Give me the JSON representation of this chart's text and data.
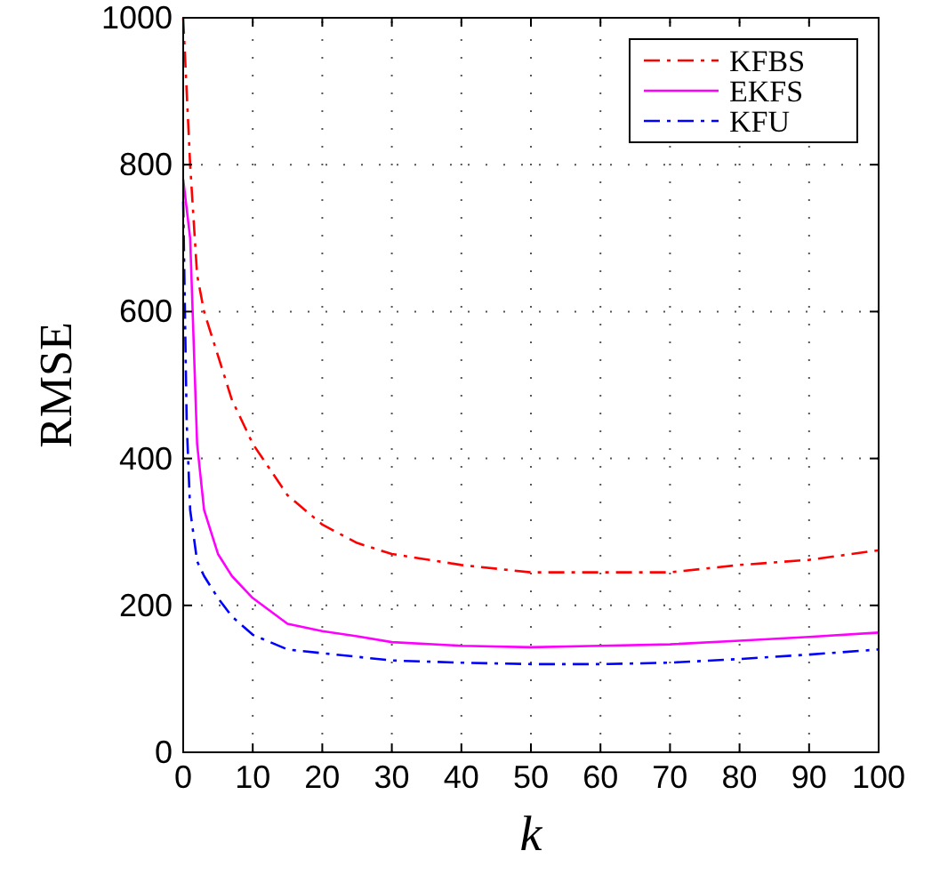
{
  "chart_data": {
    "type": "line",
    "xlabel": "k",
    "ylabel": "RMSE",
    "xlim": [
      0,
      100
    ],
    "ylim": [
      0,
      1000
    ],
    "xticks": [
      0,
      10,
      20,
      30,
      40,
      50,
      60,
      70,
      80,
      90,
      100
    ],
    "yticks": [
      0,
      200,
      400,
      600,
      800,
      1000
    ],
    "grid": true,
    "legend": "top right",
    "series": [
      {
        "name": "KFBS",
        "color": "#ff0000",
        "line_style": "dashed",
        "x": [
          0,
          1,
          2,
          3,
          5,
          7,
          10,
          15,
          20,
          25,
          30,
          40,
          50,
          60,
          70,
          80,
          90,
          100
        ],
        "values": [
          1000,
          800,
          650,
          600,
          540,
          480,
          420,
          350,
          310,
          285,
          270,
          255,
          245,
          245,
          245,
          255,
          262,
          275
        ]
      },
      {
        "name": "EKFS",
        "color": "#ff00ff",
        "line_style": "solid",
        "x": [
          0,
          1,
          2,
          3,
          5,
          7,
          10,
          15,
          20,
          25,
          30,
          40,
          50,
          60,
          70,
          80,
          90,
          100
        ],
        "values": [
          780,
          700,
          420,
          330,
          270,
          240,
          210,
          175,
          165,
          158,
          150,
          145,
          143,
          145,
          147,
          152,
          157,
          163
        ]
      },
      {
        "name": "KFU",
        "color": "#0000ff",
        "line_style": "dashed",
        "x": [
          0,
          0.5,
          1,
          2,
          3,
          5,
          7,
          10,
          15,
          20,
          25,
          30,
          40,
          50,
          60,
          70,
          80,
          90,
          100
        ],
        "values": [
          750,
          450,
          330,
          260,
          240,
          210,
          185,
          160,
          140,
          135,
          130,
          125,
          122,
          120,
          120,
          122,
          127,
          133,
          140
        ]
      }
    ]
  }
}
